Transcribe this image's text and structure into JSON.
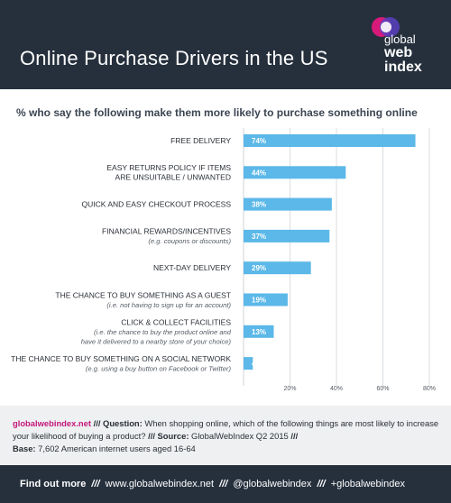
{
  "header": {
    "title": "Online Purchase Drivers in the US",
    "logo_lines": [
      "global",
      "web",
      "index"
    ]
  },
  "subtitle": "% who say the following make them more likely to purchase something online",
  "colors": {
    "header_bg": "#26303d",
    "bar": "#5bb8e8",
    "accent": "#c4177a",
    "footnote_bg": "#eef0f2"
  },
  "chart_data": {
    "type": "bar",
    "orientation": "horizontal",
    "categories": [
      {
        "label": [
          "FREE DELIVERY"
        ],
        "sub": []
      },
      {
        "label": [
          "EASY RETURNS POLICY IF ITEMS",
          "ARE UNSUITABLE / UNWANTED"
        ],
        "sub": []
      },
      {
        "label": [
          "QUICK AND EASY CHECKOUT PROCESS"
        ],
        "sub": []
      },
      {
        "label": [
          "FINANCIAL REWARDS/INCENTIVES"
        ],
        "sub": [
          "(e.g. coupons or discounts)"
        ]
      },
      {
        "label": [
          "NEXT-DAY DELIVERY"
        ],
        "sub": []
      },
      {
        "label": [
          "THE CHANCE TO BUY SOMETHING AS A GUEST"
        ],
        "sub": [
          "(i.e. not having to sign up for an account)"
        ]
      },
      {
        "label": [
          "CLICK & COLLECT FACILITIES"
        ],
        "sub": [
          "(i.e. the chance to buy the product online and",
          "have it delivered to a nearby store of your choice)"
        ]
      },
      {
        "label": [
          "THE CHANCE TO BUY SOMETHING ON A SOCIAL NETWORK"
        ],
        "sub": [
          "(e.g. using a buy button on Facebook or Twitter)"
        ]
      }
    ],
    "values": [
      74,
      44,
      38,
      37,
      29,
      19,
      13,
      4
    ],
    "value_labels": [
      "74%",
      "44%",
      "38%",
      "37%",
      "29%",
      "19%",
      "13%",
      "4%"
    ],
    "xlim": [
      0,
      80
    ],
    "ticks": [
      20,
      40,
      60,
      80
    ],
    "tick_labels": [
      "20%",
      "40%",
      "60%",
      "80%"
    ],
    "grid": true
  },
  "footnote": {
    "site": "globalwebindex.net",
    "question_label": "Question:",
    "question": "When shopping online, which of the following things are most likely to increase your likelihood of buying a product?",
    "source_label": "Source:",
    "source": "GlobalWebIndex Q2 2015",
    "base_label": "Base:",
    "base": "7,602 American internet users aged 16-64"
  },
  "footer": {
    "lead": "Find out more",
    "site": "www.globalwebindex.net",
    "handle": "@globalwebindex",
    "plus": "+globalwebindex"
  }
}
